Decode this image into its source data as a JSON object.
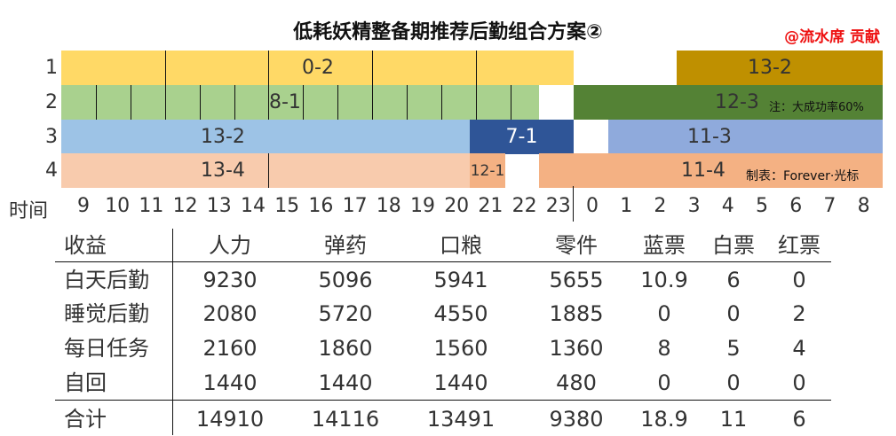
{
  "title": "低耗妖精整备期推荐后勤组合方案②",
  "credit": "@流水席 贡献",
  "notes": {
    "success_rate": "注：大成功率60%",
    "made_by": "制表：Forever·光标"
  },
  "colors": {
    "yellow": "#ffd966",
    "gold": "#bf9000",
    "light_green": "#a9d18e",
    "dark_green": "#548235",
    "light_blue": "#9dc3e6",
    "navy": "#2f5597",
    "periwinkle": "#8faadc",
    "peach": "#f8cbad",
    "salmon": "#f4b183",
    "credit_red": "#ee1111"
  },
  "chart_data": {
    "type": "table",
    "time_axis": {
      "label": "时间",
      "ticks": [
        "9",
        "10",
        "11",
        "12",
        "13",
        "14",
        "15",
        "16",
        "17",
        "18",
        "19",
        "20",
        "21",
        "22",
        "23",
        "0",
        "1",
        "2",
        "3",
        "4",
        "5",
        "6",
        "7",
        "8"
      ]
    },
    "rows": [
      "1",
      "2",
      "3",
      "4"
    ],
    "missions": [
      {
        "row": 1,
        "label": "0-2",
        "start": 9,
        "end": 23.5,
        "color": "yellow",
        "cycle_hours": 1,
        "boundaries": [
          11.5,
          14.5,
          17.5,
          20.5
        ]
      },
      {
        "row": 1,
        "label": "13-2",
        "start": 12,
        "end": 8.5,
        "color": "gold",
        "continuation": true
      },
      {
        "row": 2,
        "label": "8-1",
        "start": 9,
        "end": 22.5,
        "color": "light_green",
        "boundaries": [
          9.5,
          10.5,
          11.5,
          12.5,
          13.5,
          14.5,
          15.5,
          16.5,
          17.5,
          18.5,
          19.5,
          20.5,
          21.5
        ]
      },
      {
        "row": 2,
        "label": "12-3",
        "start": 23.5,
        "end": 8.5,
        "color": "dark_green"
      },
      {
        "row": 3,
        "label": "13-2",
        "start": 9,
        "end": 20.5,
        "color": "light_blue"
      },
      {
        "row": 3,
        "label": "7-1",
        "start": 20.5,
        "end": 23.5,
        "color": "navy"
      },
      {
        "row": 3,
        "label": "11-3",
        "start": 24.5,
        "end": 8.5,
        "color": "periwinkle"
      },
      {
        "row": 4,
        "label": "13-4",
        "start": 9,
        "end": 20.5,
        "color": "peach",
        "boundaries": [
          14.5
        ]
      },
      {
        "row": 4,
        "label": "12-1",
        "start": 20.5,
        "end": 21.5,
        "color": "salmon"
      },
      {
        "row": 4,
        "label": "11-4",
        "start": 22.5,
        "end": 8.5,
        "color": "salmon"
      }
    ]
  },
  "table": {
    "headers": [
      "收益",
      "人力",
      "弹药",
      "口粮",
      "零件",
      "蓝票",
      "白票",
      "红票"
    ],
    "rows": [
      [
        "白天后勤",
        "9230",
        "5096",
        "5941",
        "5655",
        "10.9",
        "6",
        "0"
      ],
      [
        "睡觉后勤",
        "2080",
        "5720",
        "4550",
        "1885",
        "0",
        "0",
        "2"
      ],
      [
        "每日任务",
        "2160",
        "1860",
        "1560",
        "1360",
        "8",
        "5",
        "4"
      ],
      [
        "自回",
        "1440",
        "1440",
        "1440",
        "480",
        "0",
        "0",
        "0"
      ]
    ],
    "total": [
      "合计",
      "14910",
      "14116",
      "13491",
      "9380",
      "18.9",
      "11",
      "6"
    ]
  }
}
